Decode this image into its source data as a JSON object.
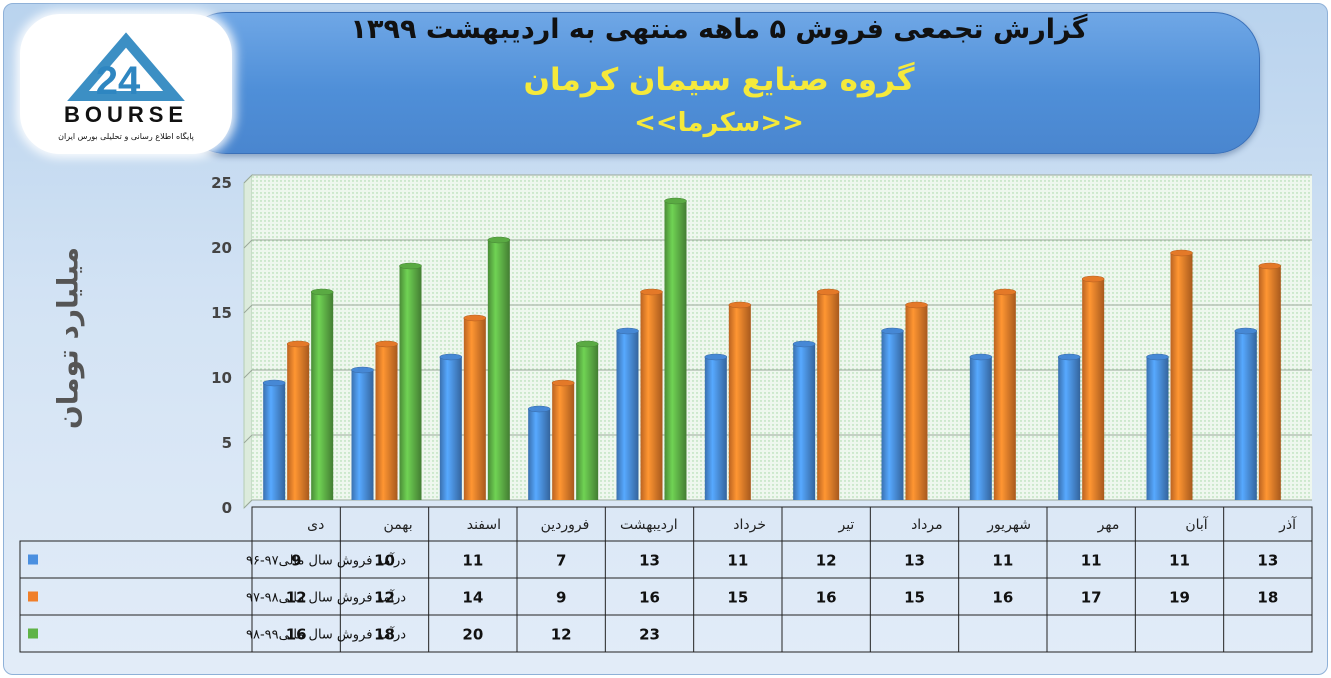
{
  "header": {
    "title_line1": "گزارش تجمعی فروش ۵ ماهه منتهی به اردیبهشت ۱۳۹۹",
    "title_line2": "گروه صنایع سیمان کرمان",
    "title_line3": "<<سکرما>>"
  },
  "logo": {
    "text": "BOURSE",
    "number": "24",
    "tagline": "پایگاه اطلاع رسانی و تحلیلی بورس ایران"
  },
  "colors": {
    "series1": "#4a8fe0",
    "series2": "#f07f2a",
    "series3": "#5fb347"
  },
  "chart_data": {
    "type": "bar",
    "ylabel": "میلیارد تومان",
    "ylim": [
      0,
      25
    ],
    "yticks": [
      0,
      5,
      10,
      15,
      20,
      25
    ],
    "grid": true,
    "categories": [
      "دی",
      "بهمن",
      "اسفند",
      "فروردین",
      "اردیبهشت",
      "خرداد",
      "تیر",
      "مرداد",
      "شهریور",
      "مهر",
      "آبان",
      "آذر"
    ],
    "series": [
      {
        "name": "درآمد فروش سال مالی۹۷-۹۶",
        "values": [
          9,
          10,
          11,
          7,
          13,
          11,
          12,
          13,
          11,
          11,
          11,
          13
        ]
      },
      {
        "name": "درآمد فروش سال مالی۹۸-۹۷",
        "values": [
          12,
          12,
          14,
          9,
          16,
          15,
          16,
          15,
          16,
          17,
          19,
          18
        ]
      },
      {
        "name": "درآمد فروش سال مالی۹۹-۹۸",
        "values": [
          16,
          18,
          20,
          12,
          23,
          null,
          null,
          null,
          null,
          null,
          null,
          null
        ]
      }
    ]
  }
}
